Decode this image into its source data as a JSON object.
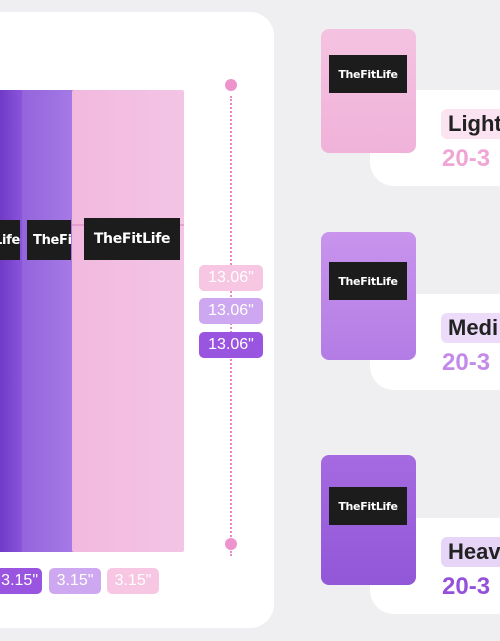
{
  "brand": "TheFitLife",
  "bands": {
    "width_labels": [
      "3.15\"",
      "3.15\"",
      "3.15\""
    ],
    "length_labels": [
      "13.06\"",
      "13.06\"",
      "13.06\""
    ]
  },
  "levels": [
    {
      "name": "Light",
      "range": "20-3",
      "color": "#f0a6d5"
    },
    {
      "name": "Medi",
      "range": "20-3",
      "color": "#c48ae8"
    },
    {
      "name": "Heav",
      "range": "20-3",
      "color": "#9450da"
    }
  ],
  "colors": {
    "light_band": "#f3c4e5",
    "medium_band": "#a57ae6",
    "heavy_band": "#7b45cf"
  }
}
